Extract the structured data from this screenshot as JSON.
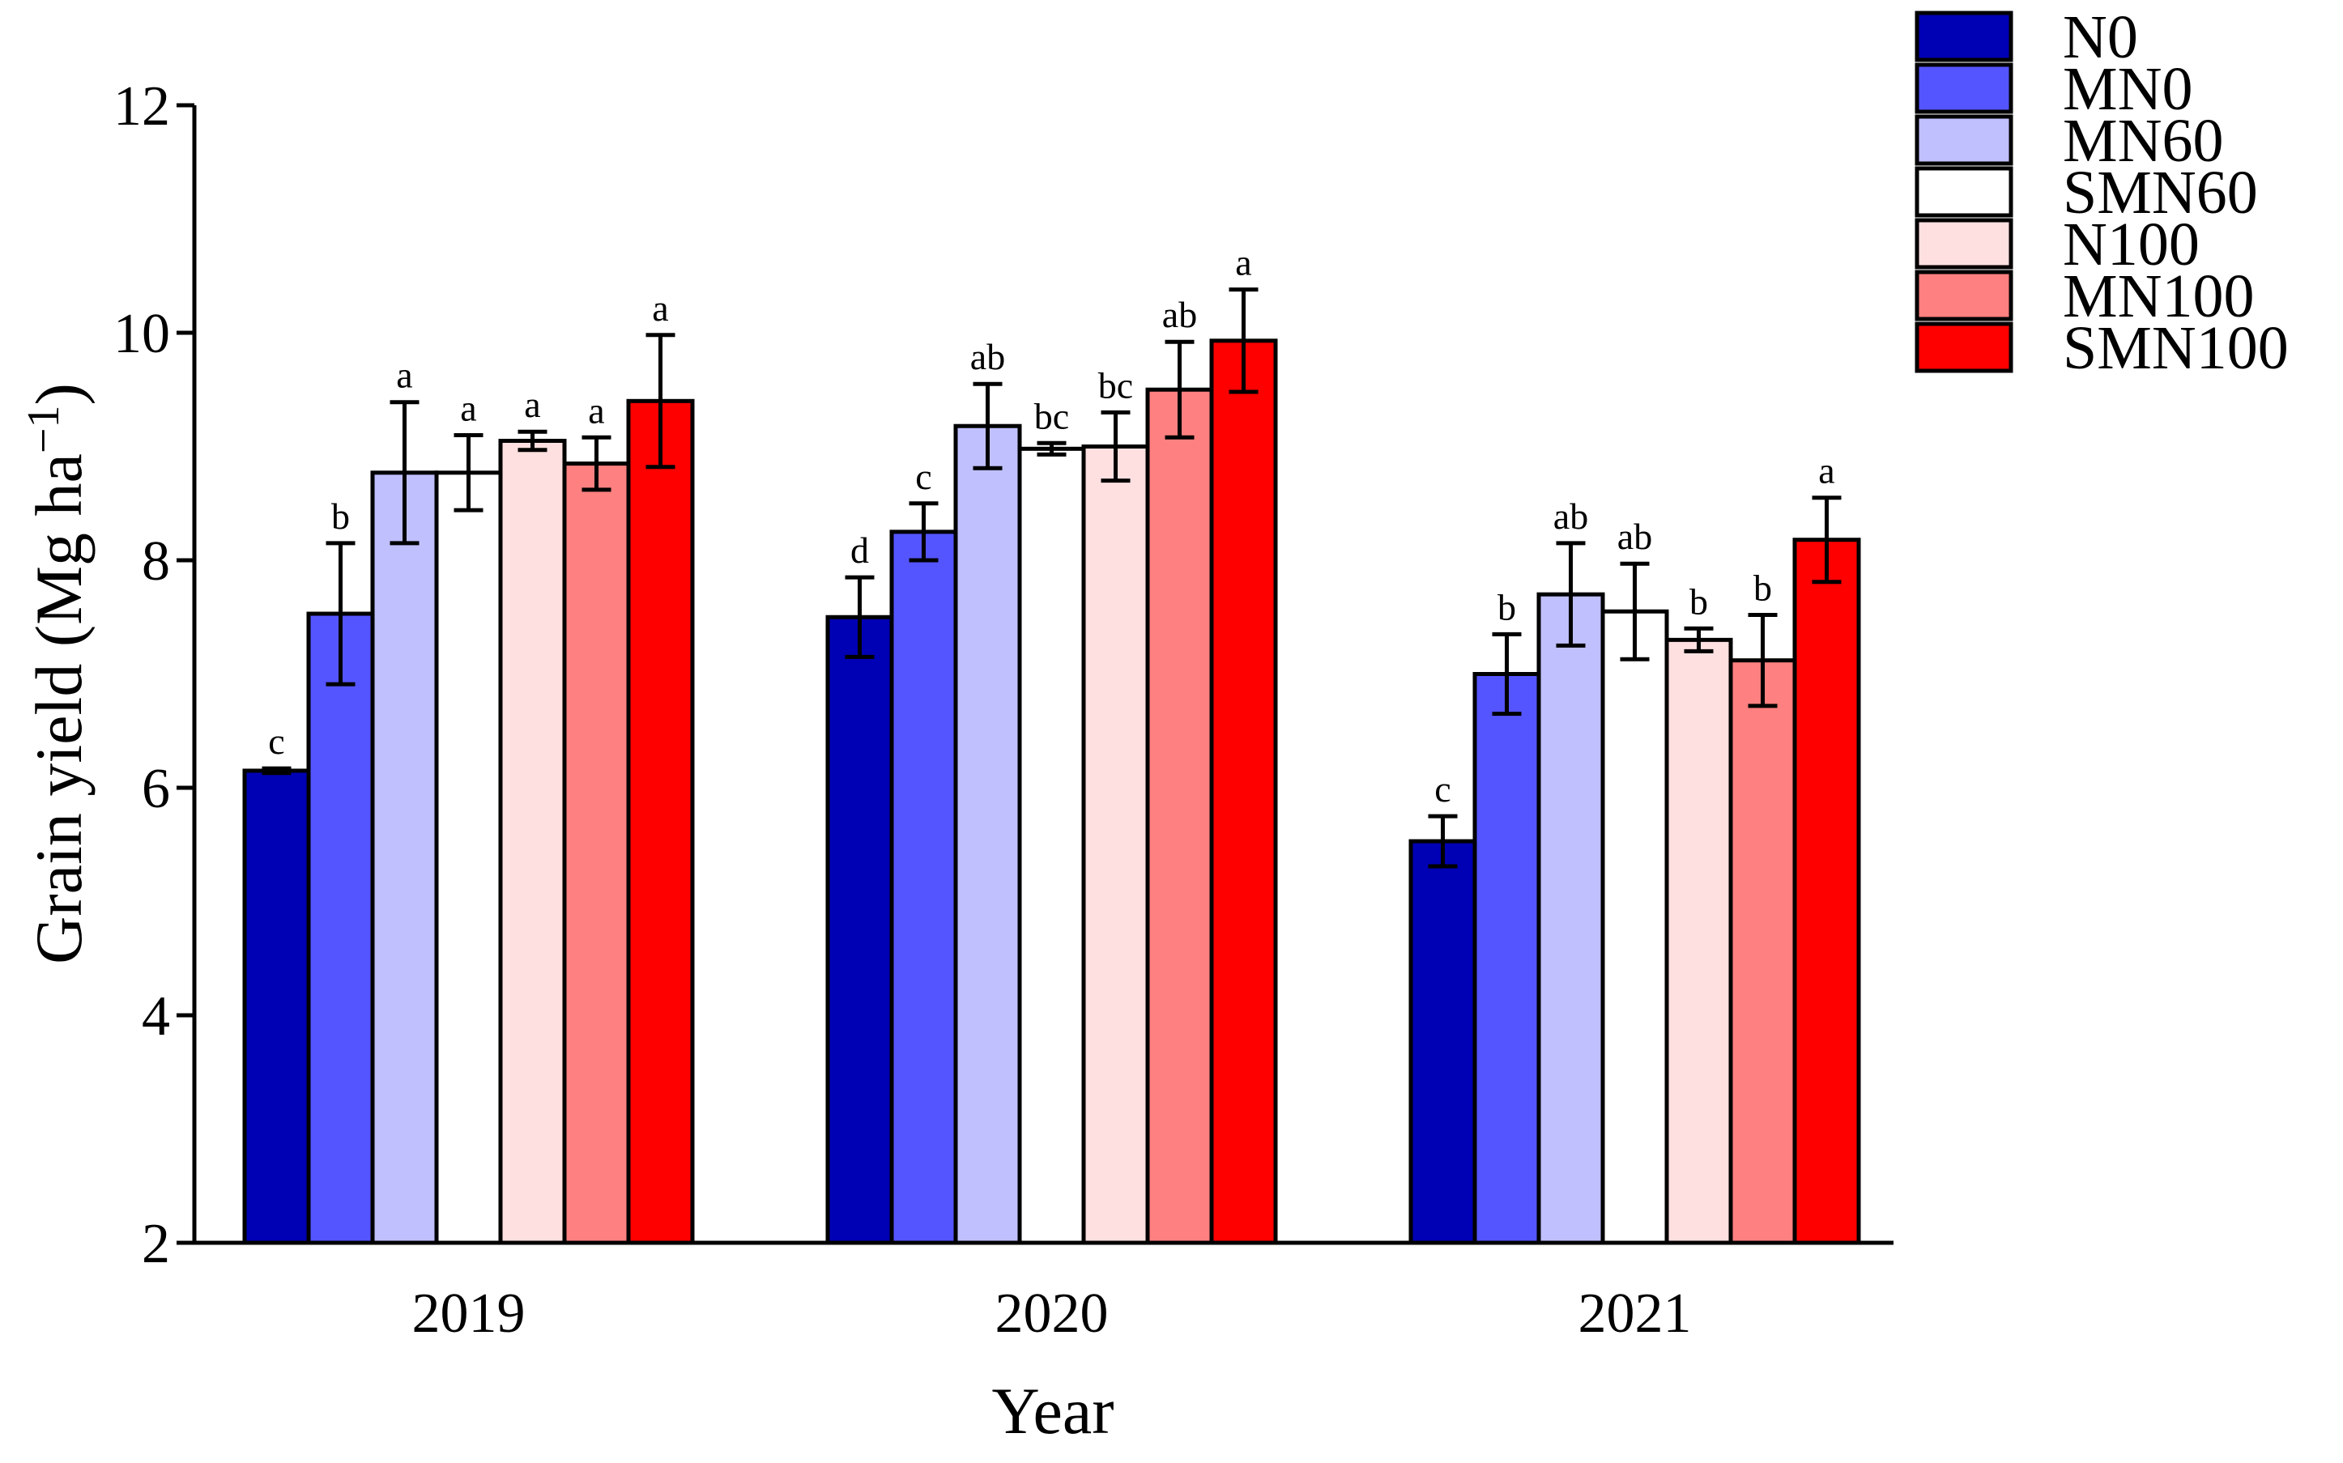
{
  "chart_data": {
    "type": "bar",
    "title": "",
    "xlabel": "Year",
    "ylabel": "Grain yield (Mg ha",
    "ylabel_sup": "−1",
    "ylabel_close": ")",
    "categories": [
      "2019",
      "2020",
      "2021"
    ],
    "ylim": [
      2,
      12
    ],
    "yticks": [
      2,
      4,
      6,
      8,
      10,
      12
    ],
    "ytick_labels": [
      "2",
      "4",
      "6",
      "8",
      "10",
      "12"
    ],
    "grid": false,
    "legend_position": "top-right",
    "series": [
      {
        "name": "N0",
        "color": "#0000b4",
        "values": [
          6.15,
          7.5,
          5.53
        ],
        "errors": [
          0.02,
          0.35,
          0.22
        ],
        "letters": [
          "c",
          "d",
          "c"
        ]
      },
      {
        "name": "MN0",
        "color": "#5555ff",
        "values": [
          7.53,
          8.25,
          7.0
        ],
        "errors": [
          0.62,
          0.25,
          0.35
        ],
        "letters": [
          "b",
          "c",
          "b"
        ]
      },
      {
        "name": "MN60",
        "color": "#c0c0ff",
        "values": [
          8.77,
          9.18,
          7.7
        ],
        "errors": [
          0.62,
          0.37,
          0.45
        ],
        "letters": [
          "a",
          "ab",
          "ab"
        ]
      },
      {
        "name": "SMN60",
        "color": "#ffffff",
        "values": [
          8.77,
          8.98,
          7.55
        ],
        "errors": [
          0.33,
          0.05,
          0.42
        ],
        "letters": [
          "a",
          "bc",
          "ab"
        ]
      },
      {
        "name": "N100",
        "color": "#ffe0e0",
        "values": [
          9.05,
          9.0,
          7.3
        ],
        "errors": [
          0.08,
          0.3,
          0.1
        ],
        "letters": [
          "a",
          "bc",
          "b"
        ]
      },
      {
        "name": "MN100",
        "color": "#ff8080",
        "values": [
          8.85,
          9.5,
          7.12
        ],
        "errors": [
          0.23,
          0.42,
          0.4
        ],
        "letters": [
          "a",
          "ab",
          "b"
        ]
      },
      {
        "name": "SMN100",
        "color": "#ff0000",
        "values": [
          9.4,
          9.93,
          8.18
        ],
        "errors": [
          0.58,
          0.45,
          0.37
        ],
        "letters": [
          "a",
          "a",
          "a"
        ]
      }
    ]
  }
}
